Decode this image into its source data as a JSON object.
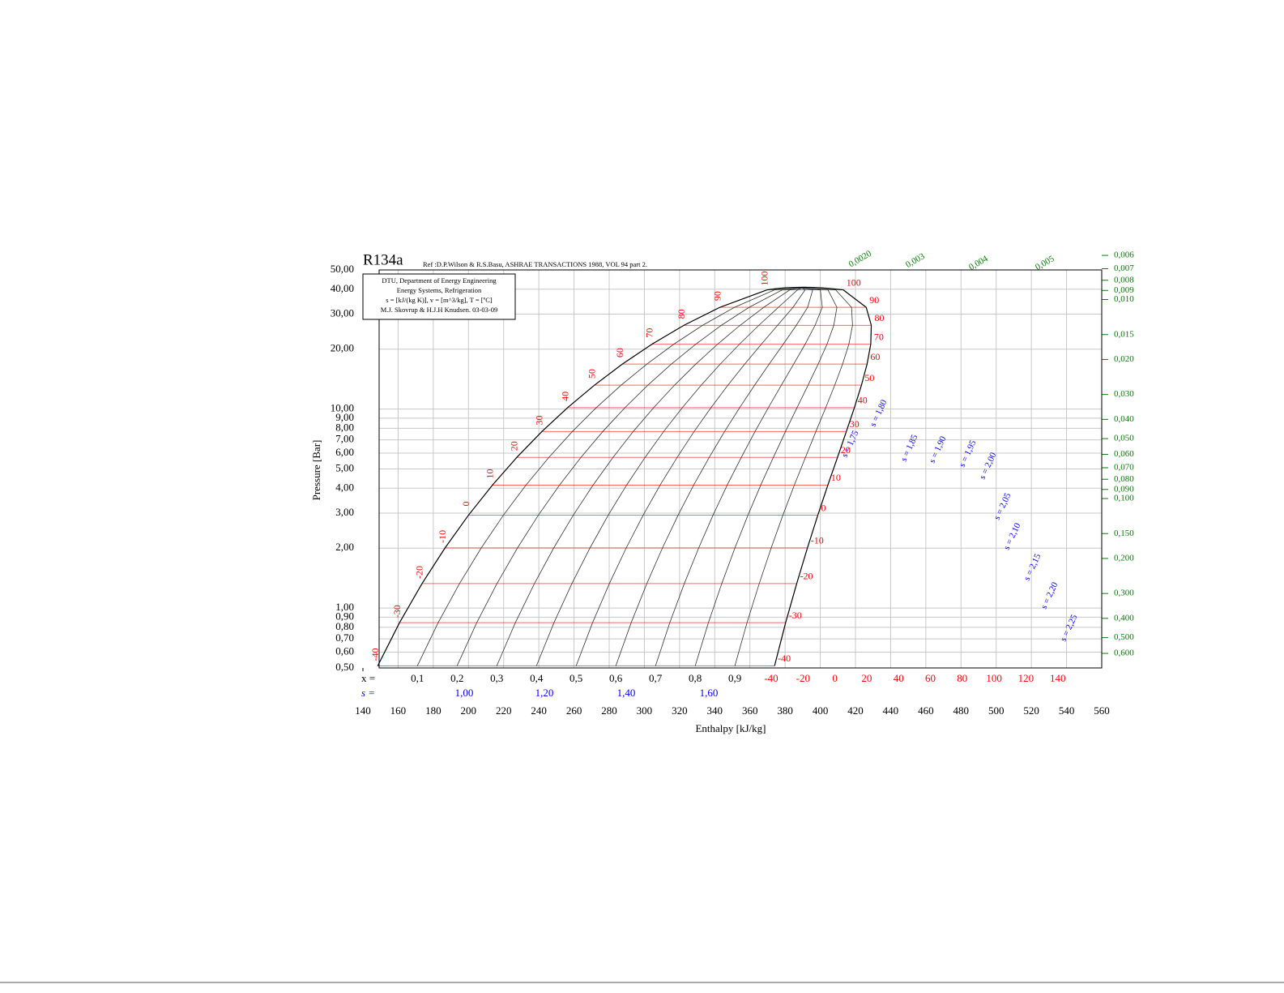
{
  "chart_data": {
    "type": "ph-diagram",
    "title": "R134a",
    "subtitle": "Ref :D.P.Wilson & R.S.Basu, ASHRAE TRANSACTIONS 1988, VOL 94 part 2.",
    "annotations": [
      "DTU, Department of Energy Engineering",
      "Energy Systems, Refrigeration",
      "s = [kJ/(kg K)], v = [m^3/kg], T = [ºC]",
      "M.J. Skovrup & H.J.H Knudsen. 03-03-09"
    ],
    "x_label": "Enthalpy [kJ/kg]",
    "y_label": "Pressure [Bar]",
    "xlim": [
      140,
      560
    ],
    "ylim": [
      0.5,
      50
    ],
    "log_y": true,
    "grid": true,
    "xticks": [
      140,
      160,
      180,
      200,
      220,
      240,
      260,
      280,
      300,
      320,
      340,
      360,
      380,
      400,
      420,
      440,
      460,
      480,
      500,
      520,
      540,
      560
    ],
    "yticks": [
      {
        "value": 0.5,
        "label": "0,50"
      },
      {
        "value": 0.6,
        "label": "0,60"
      },
      {
        "value": 0.7,
        "label": "0,70"
      },
      {
        "value": 0.8,
        "label": "0,80"
      },
      {
        "value": 0.9,
        "label": "0,90"
      },
      {
        "value": 1,
        "label": "1,00"
      },
      {
        "value": 2,
        "label": "2,00"
      },
      {
        "value": 3,
        "label": "3,00"
      },
      {
        "value": 4,
        "label": "4,00"
      },
      {
        "value": 5,
        "label": "5,00"
      },
      {
        "value": 6,
        "label": "6,00"
      },
      {
        "value": 7,
        "label": "7,00"
      },
      {
        "value": 8,
        "label": "8,00"
      },
      {
        "value": 9,
        "label": "9,00"
      },
      {
        "value": 10,
        "label": "10,00"
      },
      {
        "value": 20,
        "label": "20,00"
      },
      {
        "value": 30,
        "label": "30,00"
      },
      {
        "value": 40,
        "label": "40,00"
      },
      {
        "value": 50,
        "label": "50,00"
      }
    ],
    "saturation": {
      "color": "#000000",
      "t": [
        -40,
        -30,
        -20,
        -10,
        0,
        10,
        20,
        30,
        40,
        50,
        60,
        70,
        80,
        90,
        100
      ],
      "p": [
        0.512,
        0.844,
        1.327,
        2.006,
        2.928,
        4.146,
        5.717,
        7.702,
        10.166,
        13.18,
        16.82,
        21.17,
        26.33,
        32.44,
        39.72
      ],
      "h_liquid": [
        148.4,
        160.8,
        173.6,
        186.7,
        200.0,
        213.6,
        227.5,
        241.7,
        256.4,
        271.6,
        287.5,
        304.3,
        322.4,
        342.9,
        369.8
      ],
      "h_vapor": [
        374.0,
        380.3,
        386.6,
        392.7,
        398.6,
        404.3,
        409.8,
        414.8,
        419.4,
        423.4,
        426.6,
        428.7,
        429.0,
        426.1,
        413.0
      ]
    },
    "critical_point": {
      "h": 389.6,
      "p": 40.59
    },
    "isotherm_color": "#ff0000",
    "quality_label": "x =",
    "quality": [
      {
        "value": 0.1,
        "label": "0,1"
      },
      {
        "value": 0.2,
        "label": "0,2"
      },
      {
        "value": 0.3,
        "label": "0,3"
      },
      {
        "value": 0.4,
        "label": "0,4"
      },
      {
        "value": 0.5,
        "label": "0,5"
      },
      {
        "value": 0.6,
        "label": "0,6"
      },
      {
        "value": 0.7,
        "label": "0,7"
      },
      {
        "value": 0.8,
        "label": "0,8"
      },
      {
        "value": 0.9,
        "label": "0,9"
      }
    ],
    "entropy_label": "s =",
    "entropy_color": "#0000ff",
    "entropy_ticks": [
      {
        "value": 1.0,
        "label": "1,00"
      },
      {
        "value": 1.2,
        "label": "1,20"
      },
      {
        "value": 1.4,
        "label": "1,40"
      },
      {
        "value": 1.6,
        "label": "1,60"
      }
    ],
    "entropy_lines": [
      {
        "value": 1.75,
        "label": "s = 1,75"
      },
      {
        "value": 1.8,
        "label": "s = 1,80"
      },
      {
        "value": 1.85,
        "label": "s = 1,85"
      },
      {
        "value": 1.9,
        "label": "s = 1,90"
      },
      {
        "value": 1.95,
        "label": "s = 1,95"
      },
      {
        "value": 2.0,
        "label": "s = 2,00"
      },
      {
        "value": 2.05,
        "label": "s = 2,05"
      },
      {
        "value": 2.1,
        "label": "s = 2,10"
      },
      {
        "value": 2.15,
        "label": "s = 2,15"
      },
      {
        "value": 2.2,
        "label": "s = 2,20"
      },
      {
        "value": 2.25,
        "label": "s = 2,25"
      }
    ],
    "superheated_temperatures": [
      -40,
      -20,
      0,
      20,
      40,
      60,
      80,
      100,
      120,
      140
    ],
    "volume_color": "#008000",
    "volume_ticks": [
      {
        "value": 0.006,
        "label": "0,006"
      },
      {
        "value": 0.007,
        "label": "0,007"
      },
      {
        "value": 0.008,
        "label": "0,008"
      },
      {
        "value": 0.009,
        "label": "0,009"
      },
      {
        "value": 0.01,
        "label": "0,010"
      },
      {
        "value": 0.015,
        "label": "0,015"
      },
      {
        "value": 0.02,
        "label": "0,020"
      },
      {
        "value": 0.03,
        "label": "0,030"
      },
      {
        "value": 0.04,
        "label": "0,040"
      },
      {
        "value": 0.05,
        "label": "0,050"
      },
      {
        "value": 0.06,
        "label": "0,060"
      },
      {
        "value": 0.07,
        "label": "0,070"
      },
      {
        "value": 0.08,
        "label": "0,080"
      },
      {
        "value": 0.09,
        "label": "0,090"
      },
      {
        "value": 0.1,
        "label": "0,100"
      },
      {
        "value": 0.15,
        "label": "0,150"
      },
      {
        "value": 0.2,
        "label": "0,200"
      },
      {
        "value": 0.3,
        "label": "0,300"
      },
      {
        "value": 0.4,
        "label": "0,400"
      },
      {
        "value": 0.5,
        "label": "0,500"
      },
      {
        "value": 0.6,
        "label": "0,600"
      }
    ],
    "volume_top": [
      {
        "value": 0.002,
        "label": "0,0020"
      },
      {
        "value": 0.003,
        "label": "0,003"
      },
      {
        "value": 0.004,
        "label": "0,004"
      },
      {
        "value": 0.005,
        "label": "0,005"
      }
    ]
  }
}
